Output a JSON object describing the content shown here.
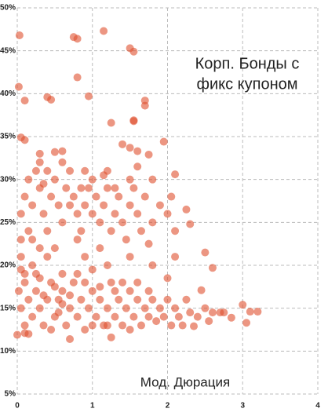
{
  "chart_data": {
    "type": "scatter",
    "annotation": [
      "Корп. Бонды с",
      "фикс купоном"
    ],
    "x_label": "Мод. Дюрация",
    "color": "#e0502f",
    "grid": true,
    "xlim": [
      0,
      4
    ],
    "xticks": [
      0,
      1,
      2,
      3,
      4
    ],
    "ylim": [
      5,
      50
    ],
    "yticks": [
      {
        "value": 5,
        "label": "5%"
      },
      {
        "value": 10,
        "label": "10%"
      },
      {
        "value": 15,
        "label": "15%"
      },
      {
        "value": 20,
        "label": "20%"
      },
      {
        "value": 25,
        "label": "25%"
      },
      {
        "value": 30,
        "label": "30%"
      },
      {
        "value": 35,
        "label": "35%"
      },
      {
        "value": 40,
        "label": "40%"
      },
      {
        "value": 45,
        "label": "45%"
      },
      {
        "value": 50,
        "label": "50%"
      }
    ],
    "x": [
      0.03,
      0.75,
      0.8,
      1.15,
      1.5,
      1.55,
      0.8,
      0.02,
      0.1,
      0.4,
      0.45,
      0.95,
      1.7,
      1.7,
      1.55,
      1.25,
      1.55,
      0.05,
      0.1,
      1.95,
      1.4,
      1.5,
      1.6,
      1.75,
      0.5,
      0.6,
      0.3,
      2.1,
      2.25,
      2.3,
      2.5,
      2.6,
      2.45,
      3.0,
      3.1,
      3.2,
      3.05,
      2.7,
      2.75,
      2.85,
      2.35,
      2.55,
      0.7,
      1.25,
      0.0,
      0.1,
      0.05,
      0.1,
      0.15,
      0.2,
      0.25,
      0.3,
      0.35,
      0.4,
      0.45,
      0.5,
      0.55,
      0.6,
      0.65,
      0.7,
      0.75,
      0.8,
      0.85,
      0.9,
      0.95,
      1.0,
      1.05,
      1.1,
      1.15,
      1.2,
      1.25,
      1.3,
      1.35,
      1.4,
      1.45,
      1.5,
      1.55,
      1.6,
      1.65,
      1.7,
      1.8,
      1.9,
      2.0,
      2.1,
      0.2,
      0.5,
      0.8,
      1.1,
      0.3,
      0.6,
      0.9,
      1.2,
      1.5,
      0.15,
      0.7,
      1.0,
      1.3,
      0.4,
      0.05,
      1.8,
      1.6,
      0.35,
      0.85,
      1.15,
      2.05,
      1.75,
      0.05,
      0.2,
      0.4,
      0.6,
      0.9,
      1.2,
      1.5,
      1.8,
      2.1,
      0.3,
      1.0,
      0.1,
      0.02,
      0.05,
      0.1,
      0.15,
      0.2,
      0.25,
      0.3,
      0.35,
      0.4,
      0.45,
      0.5,
      0.55,
      0.6,
      0.65,
      0.7,
      0.75,
      0.8,
      0.85,
      0.9,
      0.95,
      1.0,
      1.05,
      1.1,
      1.15,
      1.2,
      1.25,
      1.3,
      1.35,
      1.4,
      1.45,
      1.5,
      1.55,
      1.6,
      1.65,
      1.7,
      1.75,
      1.8,
      1.85,
      1.9,
      1.95,
      2.0,
      2.05,
      2.1,
      2.15,
      2.2,
      2.3,
      2.4,
      2.5,
      2.6,
      0.1,
      0.3,
      0.5,
      0.7,
      0.9,
      1.1,
      1.3,
      1.6,
      2.0,
      0.15,
      0.45,
      1.0,
      1.5,
      0.05,
      0.25,
      0.6,
      0.8,
      1.2,
      1.4,
      1.75,
      2.25,
      0.35,
      0.55
    ],
    "y": [
      46.8,
      46.6,
      46.4,
      47.3,
      45.3,
      44.9,
      41.9,
      40.8,
      39.2,
      39.6,
      39.3,
      39.7,
      39.2,
      38.6,
      36.8,
      36.6,
      36.9,
      34.9,
      34.6,
      34.4,
      34.1,
      33.7,
      33.3,
      32.9,
      33.2,
      33.3,
      33.0,
      30.6,
      26.5,
      24.8,
      21.5,
      19.7,
      17.1,
      15.4,
      14.6,
      14.6,
      13.3,
      14.5,
      14.5,
      13.9,
      12.9,
      13.5,
      11.4,
      11.6,
      11.9,
      12.1,
      26,
      28,
      30,
      27,
      31,
      29,
      26,
      24,
      28,
      30,
      27,
      25,
      29,
      31,
      28,
      26,
      24,
      27,
      29,
      26,
      28,
      25,
      27,
      29,
      24,
      26,
      28,
      25,
      23,
      27,
      29,
      26,
      24,
      28,
      25,
      27,
      26,
      24,
      23,
      22,
      23,
      22,
      32,
      32,
      31,
      31,
      30,
      24,
      27,
      30,
      29,
      31,
      23,
      30,
      31.5,
      29.5,
      29,
      30.5,
      28,
      22.5,
      21,
      20,
      21,
      19,
      21,
      20,
      21,
      20,
      21,
      22,
      19.5,
      19,
      17,
      15,
      18,
      16,
      14,
      17,
      15,
      13,
      16,
      18,
      14,
      16,
      17,
      13,
      15,
      18,
      14,
      16,
      12.5,
      15,
      17,
      14,
      16,
      13,
      15,
      18,
      14,
      16,
      13,
      15,
      17,
      14,
      16,
      13,
      15,
      14,
      16,
      13.5,
      15,
      14,
      16,
      13,
      15,
      14,
      13,
      14.5,
      14,
      15,
      14.5,
      13,
      18.5,
      17.5,
      16.5,
      18,
      17.5,
      17,
      18,
      18.5,
      12,
      12.5,
      13,
      12.5,
      19.5,
      19,
      15.5,
      19,
      13,
      18,
      17,
      16,
      16.5,
      14.5
    ]
  }
}
